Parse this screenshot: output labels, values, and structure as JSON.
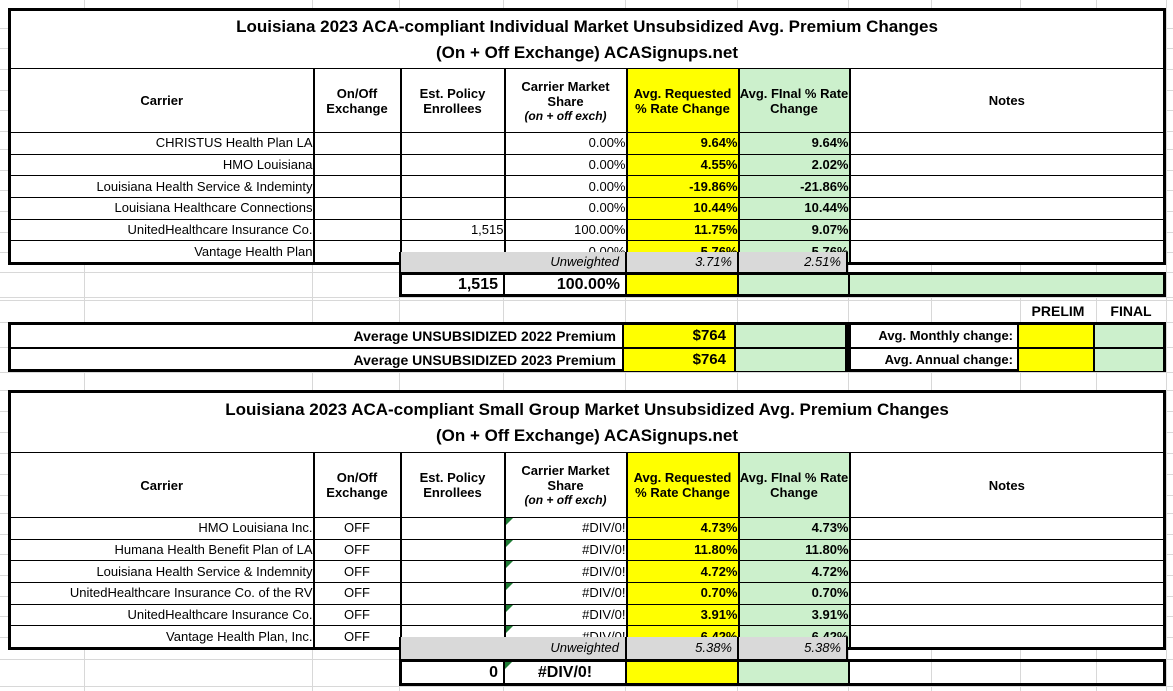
{
  "colors": {
    "highlight_yellow": "#ffff00",
    "highlight_green": "#ccf0cc",
    "unweighted_gray": "#d9d9d9",
    "error_triangle_green": "#1e7b34"
  },
  "table1": {
    "title_line1": "Louisiana 2023 ACA-compliant Individual Market Unsubsidized Avg. Premium Changes",
    "title_line2": "(On + Off Exchange) ACASignups.net",
    "headers": {
      "carrier": "Carrier",
      "exchange": "On/Off Exchange",
      "enrollees": "Est. Policy Enrollees",
      "share": "Carrier Market Share",
      "share_sub": "(on + off exch)",
      "requested": "Avg. Requested % Rate Change",
      "final": "Avg. FInal % Rate Change",
      "notes": "Notes"
    },
    "rows": [
      {
        "carrier": "CHRISTUS Health Plan LA",
        "exchange": "",
        "enrollees": "",
        "share": "0.00%",
        "requested": "9.64%",
        "final": "9.64%",
        "notes": ""
      },
      {
        "carrier": "HMO Louisiana",
        "exchange": "",
        "enrollees": "",
        "share": "0.00%",
        "requested": "4.55%",
        "final": "2.02%",
        "notes": ""
      },
      {
        "carrier": "Louisiana Health Service & Indeminty",
        "exchange": "",
        "enrollees": "",
        "share": "0.00%",
        "requested": "-19.86%",
        "final": "-21.86%",
        "notes": ""
      },
      {
        "carrier": "Louisiana Healthcare Connections",
        "exchange": "",
        "enrollees": "",
        "share": "0.00%",
        "requested": "10.44%",
        "final": "10.44%",
        "notes": ""
      },
      {
        "carrier": "UnitedHealthcare Insurance Co.",
        "exchange": "",
        "enrollees": "1,515",
        "share": "100.00%",
        "requested": "11.75%",
        "final": "9.07%",
        "notes": ""
      },
      {
        "carrier": "Vantage Health Plan",
        "exchange": "",
        "enrollees": "",
        "share": "0.00%",
        "requested": "5.76%",
        "final": "5.76%",
        "notes": ""
      }
    ],
    "unweighted": {
      "label": "Unweighted",
      "requested": "3.71%",
      "final": "2.51%"
    },
    "totals": {
      "enrollees": "1,515",
      "share": "100.00%"
    }
  },
  "summary": {
    "prelim_label": "PRELIM",
    "final_label": "FINAL",
    "premium_rows": [
      {
        "label": "Average UNSUBSIDIZED 2022 Premium",
        "value": "$764"
      },
      {
        "label": "Average UNSUBSIDIZED 2023 Premium",
        "value": "$764"
      }
    ],
    "change_rows": [
      {
        "label": "Avg. Monthly change:",
        "prelim": "",
        "final": ""
      },
      {
        "label": "Avg. Annual change:",
        "prelim": "",
        "final": ""
      }
    ]
  },
  "table2": {
    "title_line1": "Louisiana 2023 ACA-compliant Small Group Market Unsubsidized Avg. Premium Changes",
    "title_line2": "(On + Off Exchange) ACASignups.net",
    "headers": {
      "carrier": "Carrier",
      "exchange": "On/Off Exchange",
      "enrollees": "Est. Policy Enrollees",
      "share": "Carrier Market Share",
      "share_sub": "(on + off exch)",
      "requested": "Avg. Requested % Rate Change",
      "final": "Avg. FInal % Rate Change",
      "notes": "Notes"
    },
    "rows": [
      {
        "carrier": "HMO Louisiana Inc.",
        "exchange": "OFF",
        "enrollees": "",
        "share": "#DIV/0!",
        "requested": "4.73%",
        "final": "4.73%",
        "notes": ""
      },
      {
        "carrier": "Humana Health Benefit Plan of LA",
        "exchange": "OFF",
        "enrollees": "",
        "share": "#DIV/0!",
        "requested": "11.80%",
        "final": "11.80%",
        "notes": ""
      },
      {
        "carrier": "Louisiana Health Service & Indemnity",
        "exchange": "OFF",
        "enrollees": "",
        "share": "#DIV/0!",
        "requested": "4.72%",
        "final": "4.72%",
        "notes": ""
      },
      {
        "carrier": "UnitedHealthcare Insurance Co. of the RV",
        "exchange": "OFF",
        "enrollees": "",
        "share": "#DIV/0!",
        "requested": "0.70%",
        "final": "0.70%",
        "notes": ""
      },
      {
        "carrier": "UnitedHealthcare Insurance Co.",
        "exchange": "OFF",
        "enrollees": "",
        "share": "#DIV/0!",
        "requested": "3.91%",
        "final": "3.91%",
        "notes": ""
      },
      {
        "carrier": "Vantage Health Plan, Inc.",
        "exchange": "OFF",
        "enrollees": "",
        "share": "#DIV/0!",
        "requested": "6.42%",
        "final": "6.42%",
        "notes": ""
      }
    ],
    "unweighted": {
      "label": "Unweighted",
      "requested": "5.38%",
      "final": "5.38%"
    },
    "totals": {
      "enrollees": "0",
      "share": "#DIV/0!"
    }
  }
}
